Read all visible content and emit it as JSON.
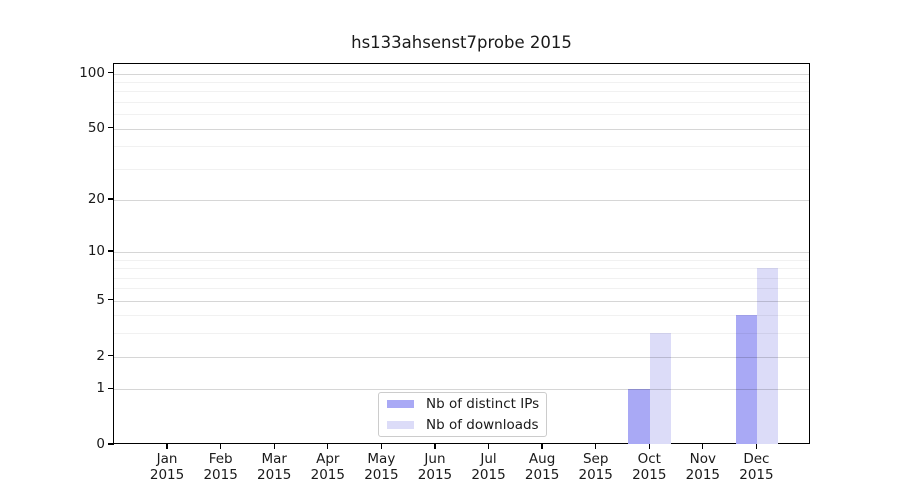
{
  "title": "hs133ahsenst7probe 2015",
  "legend": {
    "items": [
      {
        "label": "Nb of distinct IPs",
        "color": "#a9a9f5"
      },
      {
        "label": "Nb of downloads",
        "color": "#dcdcf8"
      }
    ],
    "position": "inside-bottom-center"
  },
  "colors": {
    "bar_distinct_ips": "#a9a9f5",
    "bar_downloads": "#dcdcf8",
    "grid_major": "rgba(0,0,0,0.16)",
    "grid_minor": "rgba(0,0,0,0.055)",
    "axis": "#000000",
    "text": "#1a1a1a",
    "background": "#ffffff"
  },
  "chart_data": {
    "type": "bar",
    "title": "hs133ahsenst7probe 2015",
    "xlabel": "",
    "ylabel": "",
    "x": {
      "months": [
        "Jan",
        "Feb",
        "Mar",
        "Apr",
        "May",
        "Jun",
        "Jul",
        "Aug",
        "Sep",
        "Oct",
        "Nov",
        "Dec"
      ],
      "year": "2015"
    },
    "categories": [
      "Jan 2015",
      "Feb 2015",
      "Mar 2015",
      "Apr 2015",
      "May 2015",
      "Jun 2015",
      "Jul 2015",
      "Aug 2015",
      "Sep 2015",
      "Oct 2015",
      "Nov 2015",
      "Dec 2015"
    ],
    "series": [
      {
        "name": "Nb of distinct IPs",
        "color": "#a9a9f5",
        "values": [
          0,
          0,
          0,
          0,
          0,
          0,
          0,
          0,
          0,
          1,
          0,
          4
        ]
      },
      {
        "name": "Nb of downloads",
        "color": "#dcdcf8",
        "values": [
          0,
          0,
          0,
          0,
          0,
          0,
          0,
          0,
          0,
          3,
          0,
          8
        ]
      }
    ],
    "y_axis": {
      "scale": "log1p",
      "tick_values": [
        0,
        1,
        2,
        5,
        10,
        20,
        50,
        100
      ],
      "tick_labels": [
        "0",
        "1",
        "2",
        "5",
        "10",
        "20",
        "50",
        "100"
      ],
      "minor_gridline_values": [
        3,
        4,
        6,
        7,
        8,
        9,
        30,
        40,
        60,
        70,
        80,
        90
      ],
      "ylim": [
        0,
        112
      ]
    },
    "grid": true,
    "legend_position": "inside-bottom-center"
  }
}
